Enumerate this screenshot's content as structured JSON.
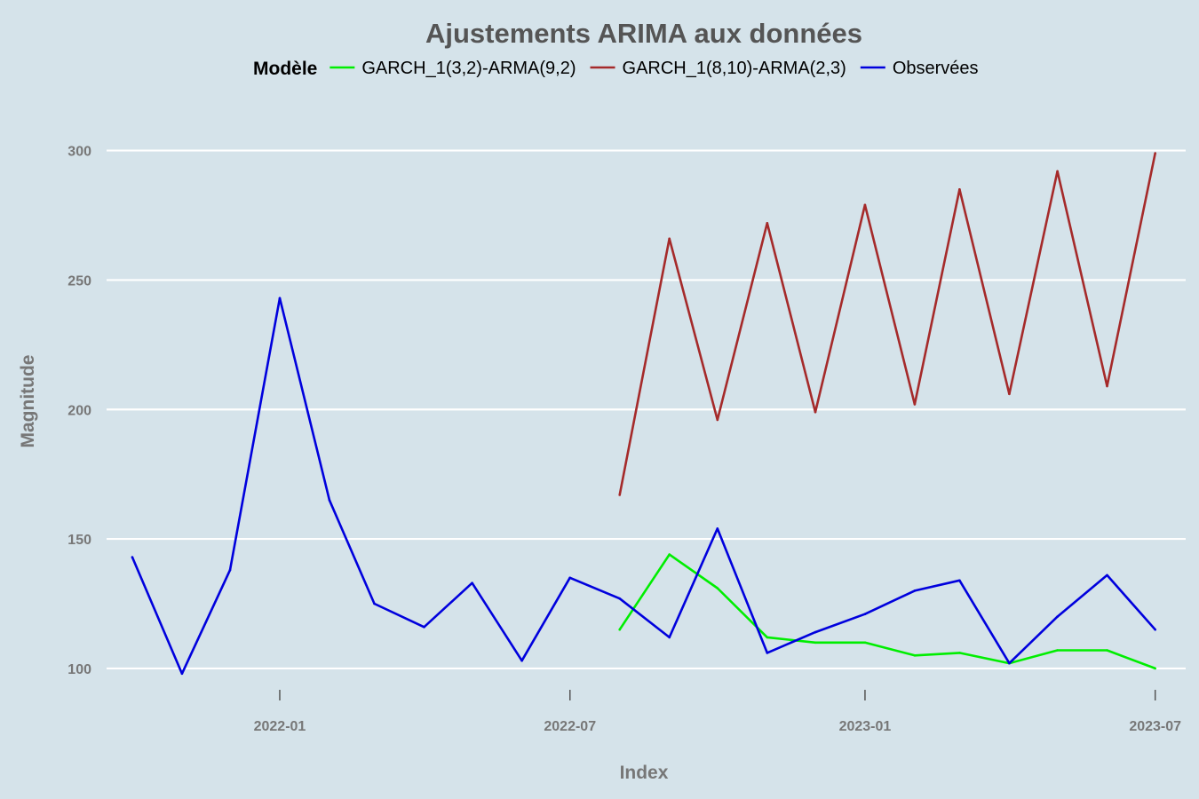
{
  "chart_data": {
    "type": "line",
    "title": "Ajustements ARIMA aux données",
    "xlabel": "Index",
    "ylabel": "Magnitude",
    "legend_title": "Modèle",
    "legend_position": "top",
    "grid": "horizontal major lines only",
    "background": "#d5e3ea",
    "xlim": [
      "2021-09-15",
      "2023-07-20"
    ],
    "ylim": [
      89,
      317
    ],
    "x_ticks": [
      "2022-01",
      "2022-07",
      "2023-01",
      "2023-07"
    ],
    "y_ticks": [
      100,
      150,
      200,
      250,
      300
    ],
    "series": [
      {
        "name": "GARCH_1(3,2)-ARMA(9,2)",
        "color": "#00ee00",
        "points": [
          [
            "2022-08-01",
            115
          ],
          [
            "2022-09-01",
            144
          ],
          [
            "2022-10-01",
            131
          ],
          [
            "2022-11-01",
            112
          ],
          [
            "2022-12-01",
            110
          ],
          [
            "2023-01-01",
            110
          ],
          [
            "2023-02-01",
            105
          ],
          [
            "2023-03-01",
            106
          ],
          [
            "2023-04-01",
            102
          ],
          [
            "2023-05-01",
            107
          ],
          [
            "2023-06-01",
            107
          ],
          [
            "2023-07-01",
            100
          ]
        ]
      },
      {
        "name": "GARCH_1(8,10)-ARMA(2,3)",
        "color": "#a52a2a",
        "points": [
          [
            "2022-08-01",
            167
          ],
          [
            "2022-09-01",
            266
          ],
          [
            "2022-10-01",
            196
          ],
          [
            "2022-11-01",
            272
          ],
          [
            "2022-12-01",
            199
          ],
          [
            "2023-01-01",
            279
          ],
          [
            "2023-02-01",
            202
          ],
          [
            "2023-03-01",
            285
          ],
          [
            "2023-04-01",
            206
          ],
          [
            "2023-05-01",
            292
          ],
          [
            "2023-06-01",
            209
          ],
          [
            "2023-07-01",
            299
          ]
        ]
      },
      {
        "name": "Observées",
        "color": "#0000dd",
        "points": [
          [
            "2021-10-01",
            143
          ],
          [
            "2021-11-01",
            98
          ],
          [
            "2021-12-01",
            138
          ],
          [
            "2022-01-01",
            243
          ],
          [
            "2022-02-01",
            165
          ],
          [
            "2022-03-01",
            125
          ],
          [
            "2022-04-01",
            116
          ],
          [
            "2022-05-01",
            133
          ],
          [
            "2022-06-01",
            103
          ],
          [
            "2022-07-01",
            135
          ],
          [
            "2022-08-01",
            127
          ],
          [
            "2022-09-01",
            112
          ],
          [
            "2022-10-01",
            154
          ],
          [
            "2022-11-01",
            106
          ],
          [
            "2022-12-01",
            114
          ],
          [
            "2023-01-01",
            121
          ],
          [
            "2023-02-01",
            130
          ],
          [
            "2023-03-01",
            134
          ],
          [
            "2023-04-01",
            102
          ],
          [
            "2023-05-01",
            120
          ],
          [
            "2023-06-01",
            136
          ],
          [
            "2023-07-01",
            115
          ]
        ]
      }
    ]
  }
}
